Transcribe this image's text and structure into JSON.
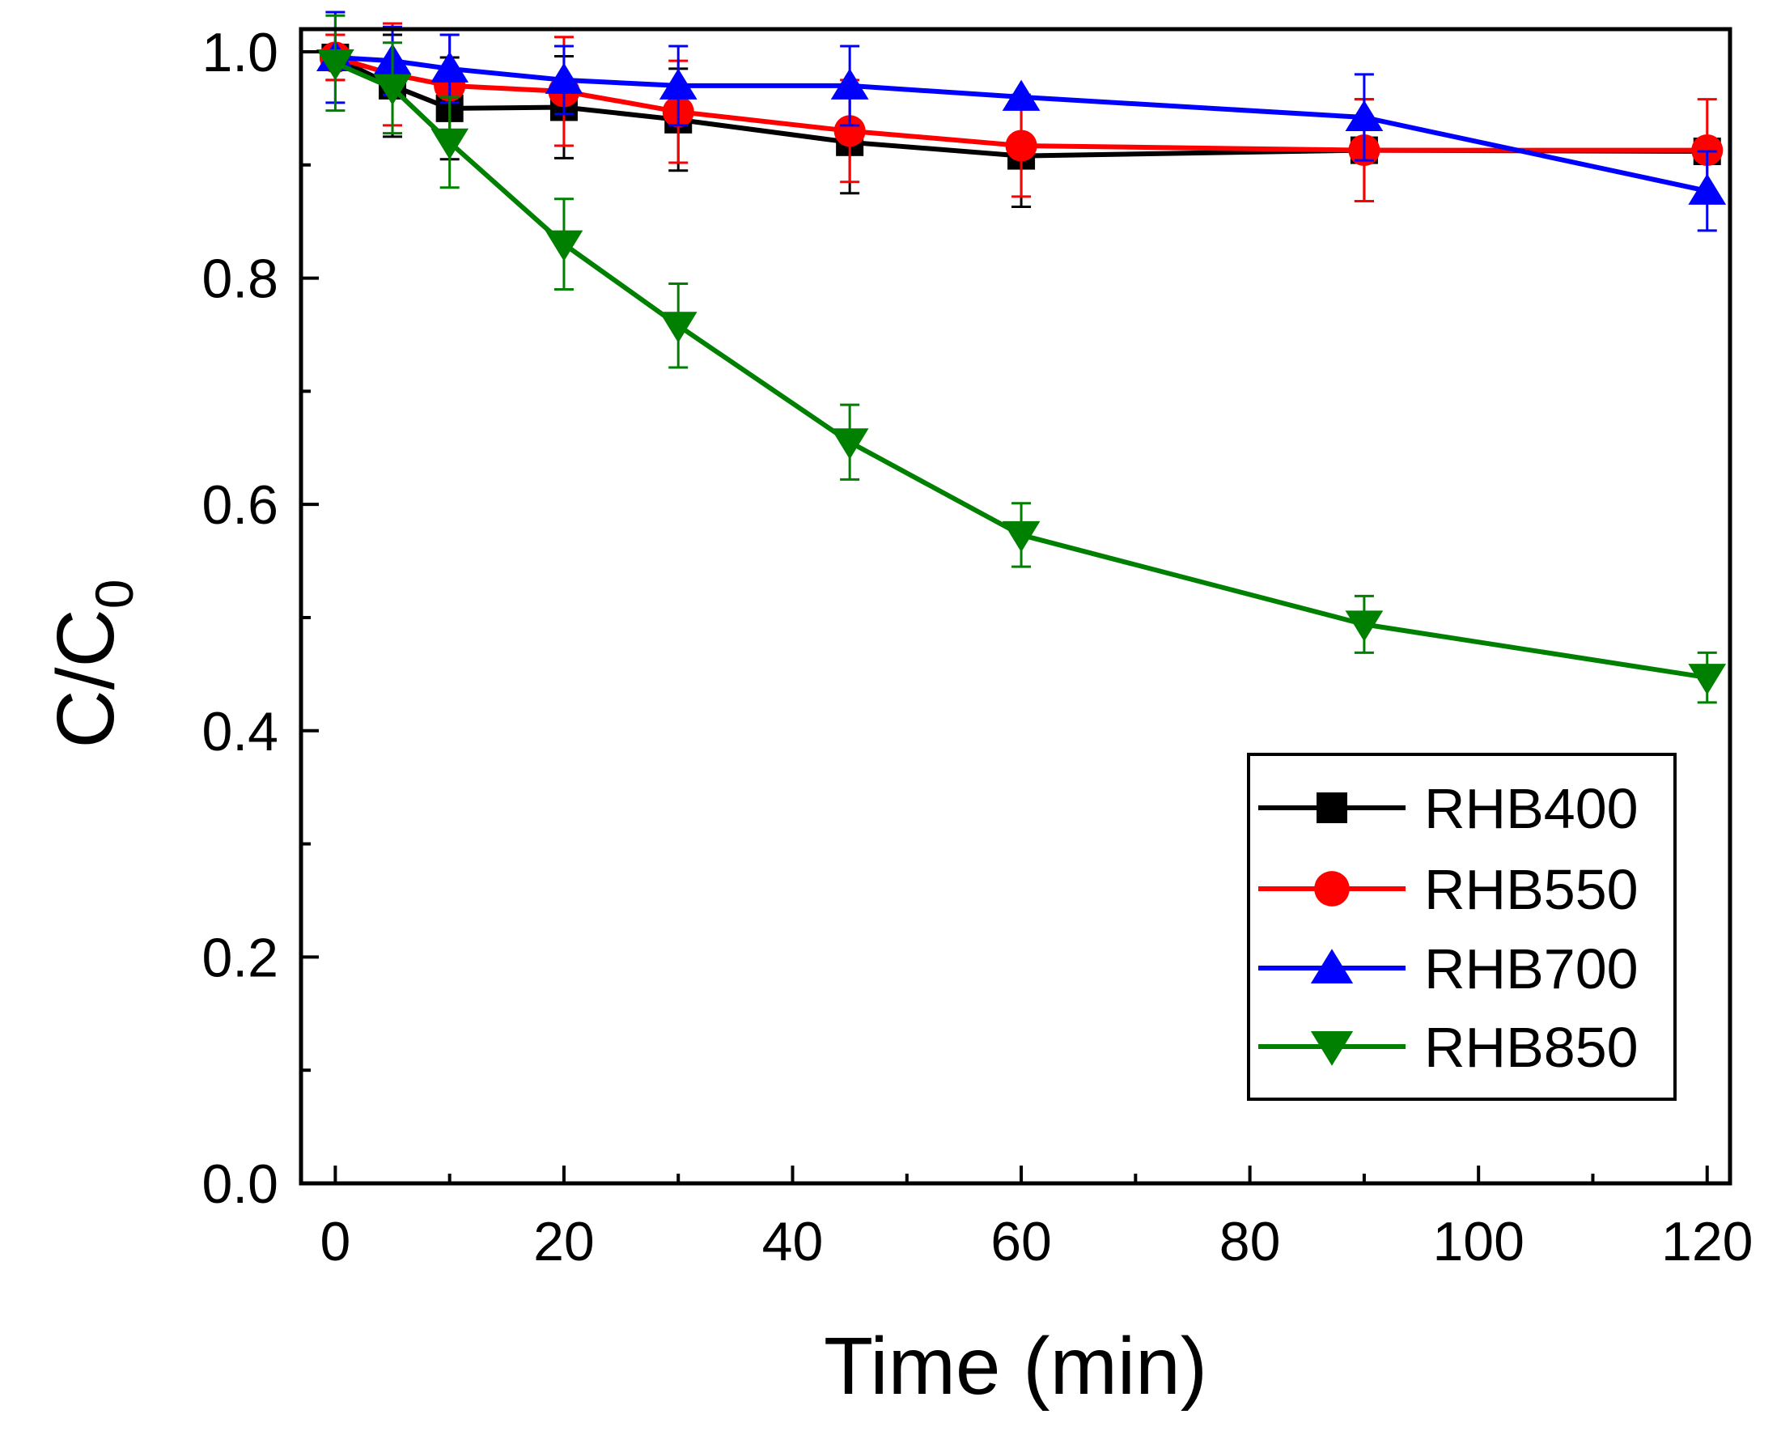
{
  "chart_data": {
    "type": "line",
    "title": "",
    "xlabel": "Time (min)",
    "ylabel_main": "C/C",
    "ylabel_sub": "0",
    "xlim": [
      -3,
      122
    ],
    "ylim": [
      0.0,
      1.02
    ],
    "x_ticks": [
      0,
      20,
      40,
      60,
      80,
      100,
      120
    ],
    "x_tick_labels": [
      "0",
      "20",
      "40",
      "60",
      "80",
      "100",
      "120"
    ],
    "x_minor_ticks": [
      10,
      30,
      50,
      70,
      90,
      110
    ],
    "y_ticks": [
      0.0,
      0.2,
      0.4,
      0.6,
      0.8,
      1.0
    ],
    "y_tick_labels": [
      "0.0",
      "0.2",
      "0.4",
      "0.6",
      "0.8",
      "1.0"
    ],
    "y_minor_ticks": [
      0.1,
      0.3,
      0.5,
      0.7,
      0.9
    ],
    "grid": false,
    "legend_position": "lower-right",
    "x": [
      0,
      5,
      10,
      20,
      30,
      45,
      60,
      90,
      120
    ],
    "series": [
      {
        "name": "RHB400",
        "color": "#000000",
        "marker": "square",
        "values": [
          0.995,
          0.97,
          0.95,
          0.951,
          0.94,
          0.92,
          0.908,
          0.913,
          0.912
        ],
        "errors": [
          0.02,
          0.045,
          0.045,
          0.045,
          0.045,
          0.045,
          0.045,
          0.045,
          0.0
        ]
      },
      {
        "name": "RHB550",
        "color": "#ff0000",
        "marker": "circle",
        "values": [
          0.995,
          0.98,
          0.97,
          0.965,
          0.947,
          0.93,
          0.917,
          0.913,
          0.913
        ],
        "errors": [
          0.02,
          0.045,
          0.045,
          0.048,
          0.045,
          0.045,
          0.045,
          0.045,
          0.045
        ]
      },
      {
        "name": "RHB700",
        "color": "#0000ff",
        "marker": "triangle-up",
        "values": [
          0.995,
          0.992,
          0.985,
          0.975,
          0.97,
          0.97,
          0.96,
          0.942,
          0.877
        ],
        "errors": [
          0.04,
          0.03,
          0.03,
          0.03,
          0.035,
          0.035,
          0.0,
          0.038,
          0.035
        ]
      },
      {
        "name": "RHB850",
        "color": "#008000",
        "marker": "triangle-down",
        "values": [
          0.99,
          0.968,
          0.92,
          0.83,
          0.758,
          0.655,
          0.573,
          0.494,
          0.447
        ],
        "errors": [
          0.042,
          0.04,
          0.04,
          0.04,
          0.037,
          0.033,
          0.028,
          0.025,
          0.022
        ]
      }
    ]
  }
}
